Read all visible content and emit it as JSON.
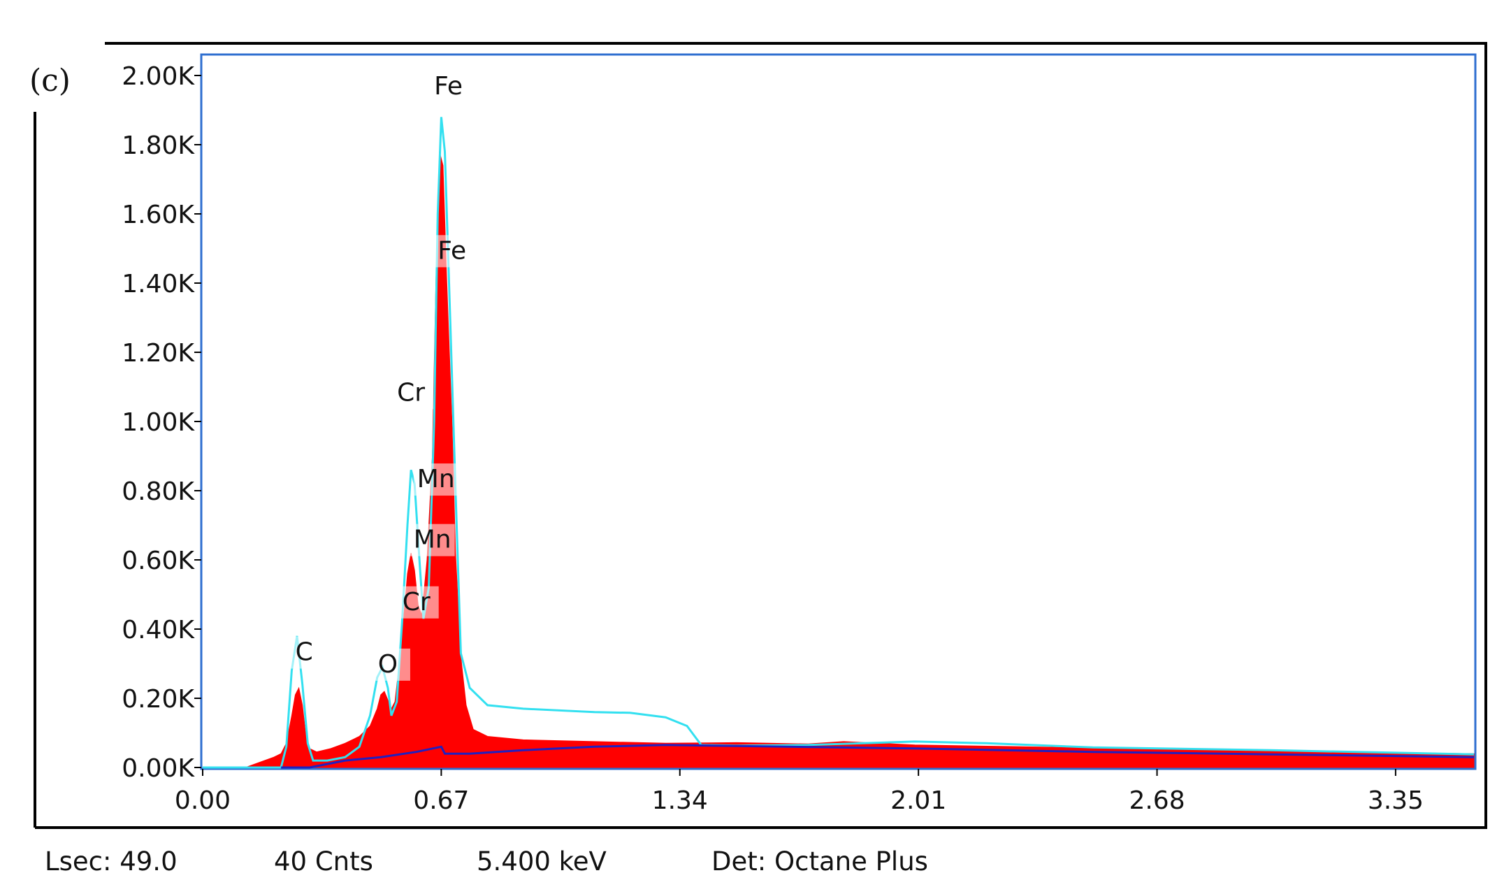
{
  "panel_label": "(c)",
  "status": {
    "lsec": "Lsec: 49.0",
    "cnts": "40 Cnts",
    "kev": "5.400 keV",
    "det": "Det: Octane Plus"
  },
  "colors": {
    "spectrum_fill": "#ff0000",
    "fit_line": "#33e0f0",
    "background_line": "#2020c0",
    "plot_border": "#2f6fd0",
    "frame": "#000000"
  },
  "chart_data": {
    "type": "area",
    "title": "",
    "xlabel": "",
    "ylabel": "",
    "xlim": [
      0,
      3.57
    ],
    "ylim": [
      0,
      2000
    ],
    "x_tick_labels": [
      "0.00",
      "0.67",
      "1.34",
      "2.01",
      "2.68",
      "3.35"
    ],
    "x_tick_values": [
      0,
      0.67,
      1.34,
      2.01,
      2.68,
      3.35
    ],
    "y_tick_labels": [
      "0.00K",
      "0.20K",
      "0.40K",
      "0.60K",
      "0.80K",
      "1.00K",
      "1.20K",
      "1.40K",
      "1.60K",
      "1.80K",
      "2.00K"
    ],
    "y_tick_values": [
      0,
      200,
      400,
      600,
      800,
      1000,
      1200,
      1400,
      1600,
      1800,
      2000
    ],
    "series": [
      {
        "kind": "spectrum",
        "points": [
          [
            0.0,
            0
          ],
          [
            0.12,
            0
          ],
          [
            0.16,
            15
          ],
          [
            0.2,
            30
          ],
          [
            0.22,
            40
          ],
          [
            0.235,
            70
          ],
          [
            0.25,
            150
          ],
          [
            0.26,
            210
          ],
          [
            0.27,
            230
          ],
          [
            0.28,
            180
          ],
          [
            0.29,
            90
          ],
          [
            0.3,
            55
          ],
          [
            0.32,
            45
          ],
          [
            0.36,
            55
          ],
          [
            0.4,
            70
          ],
          [
            0.44,
            90
          ],
          [
            0.47,
            120
          ],
          [
            0.49,
            170
          ],
          [
            0.5,
            210
          ],
          [
            0.51,
            220
          ],
          [
            0.52,
            195
          ],
          [
            0.53,
            170
          ],
          [
            0.54,
            190
          ],
          [
            0.55,
            280
          ],
          [
            0.56,
            380
          ],
          [
            0.575,
            560
          ],
          [
            0.585,
            620
          ],
          [
            0.595,
            570
          ],
          [
            0.605,
            470
          ],
          [
            0.615,
            440
          ],
          [
            0.63,
            600
          ],
          [
            0.645,
            900
          ],
          [
            0.655,
            1400
          ],
          [
            0.665,
            1780
          ],
          [
            0.675,
            1740
          ],
          [
            0.685,
            1420
          ],
          [
            0.7,
            1000
          ],
          [
            0.71,
            620
          ],
          [
            0.725,
            320
          ],
          [
            0.74,
            180
          ],
          [
            0.76,
            110
          ],
          [
            0.8,
            90
          ],
          [
            0.9,
            80
          ],
          [
            1.1,
            75
          ],
          [
            1.3,
            70
          ],
          [
            1.5,
            72
          ],
          [
            1.7,
            68
          ],
          [
            1.8,
            75
          ],
          [
            2.0,
            65
          ],
          [
            2.3,
            60
          ],
          [
            2.6,
            55
          ],
          [
            2.9,
            50
          ],
          [
            3.2,
            45
          ],
          [
            3.57,
            40
          ]
        ]
      },
      {
        "kind": "fit",
        "points": [
          [
            0.0,
            0
          ],
          [
            0.22,
            0
          ],
          [
            0.235,
            60
          ],
          [
            0.25,
            280
          ],
          [
            0.265,
            380
          ],
          [
            0.28,
            240
          ],
          [
            0.295,
            70
          ],
          [
            0.31,
            20
          ],
          [
            0.35,
            20
          ],
          [
            0.4,
            30
          ],
          [
            0.44,
            60
          ],
          [
            0.47,
            150
          ],
          [
            0.49,
            260
          ],
          [
            0.505,
            290
          ],
          [
            0.52,
            230
          ],
          [
            0.53,
            150
          ],
          [
            0.545,
            190
          ],
          [
            0.56,
            420
          ],
          [
            0.575,
            700
          ],
          [
            0.585,
            860
          ],
          [
            0.595,
            820
          ],
          [
            0.61,
            580
          ],
          [
            0.62,
            430
          ],
          [
            0.635,
            520
          ],
          [
            0.65,
            1000
          ],
          [
            0.66,
            1600
          ],
          [
            0.67,
            1880
          ],
          [
            0.68,
            1780
          ],
          [
            0.695,
            1300
          ],
          [
            0.71,
            800
          ],
          [
            0.725,
            330
          ],
          [
            0.75,
            230
          ],
          [
            0.8,
            180
          ],
          [
            0.9,
            170
          ],
          [
            1.1,
            160
          ],
          [
            1.2,
            158
          ],
          [
            1.3,
            145
          ],
          [
            1.36,
            120
          ],
          [
            1.4,
            65
          ],
          [
            1.5,
            63
          ],
          [
            1.7,
            65
          ],
          [
            2.0,
            75
          ],
          [
            2.2,
            70
          ],
          [
            2.5,
            58
          ],
          [
            3.0,
            50
          ],
          [
            3.57,
            38
          ]
        ]
      },
      {
        "kind": "background",
        "points": [
          [
            0.22,
            0
          ],
          [
            0.3,
            0
          ],
          [
            0.4,
            20
          ],
          [
            0.5,
            30
          ],
          [
            0.6,
            45
          ],
          [
            0.67,
            60
          ],
          [
            0.68,
            40
          ],
          [
            0.75,
            40
          ],
          [
            0.9,
            50
          ],
          [
            1.1,
            60
          ],
          [
            1.3,
            65
          ],
          [
            1.5,
            62
          ],
          [
            2.0,
            55
          ],
          [
            2.5,
            45
          ],
          [
            3.0,
            38
          ],
          [
            3.57,
            30
          ]
        ]
      }
    ],
    "peak_labels": [
      {
        "text": "Fe",
        "x": 0.69,
        "y": 1945
      },
      {
        "text": "Fe",
        "x": 0.7,
        "y": 1470
      },
      {
        "text": "Cr",
        "x": 0.585,
        "y": 1060
      },
      {
        "text": "Mn",
        "x": 0.655,
        "y": 810
      },
      {
        "text": "Mn",
        "x": 0.645,
        "y": 635
      },
      {
        "text": "Cr",
        "x": 0.6,
        "y": 455
      },
      {
        "text": "C",
        "x": 0.285,
        "y": 310
      },
      {
        "text": "O",
        "x": 0.52,
        "y": 275
      }
    ]
  }
}
